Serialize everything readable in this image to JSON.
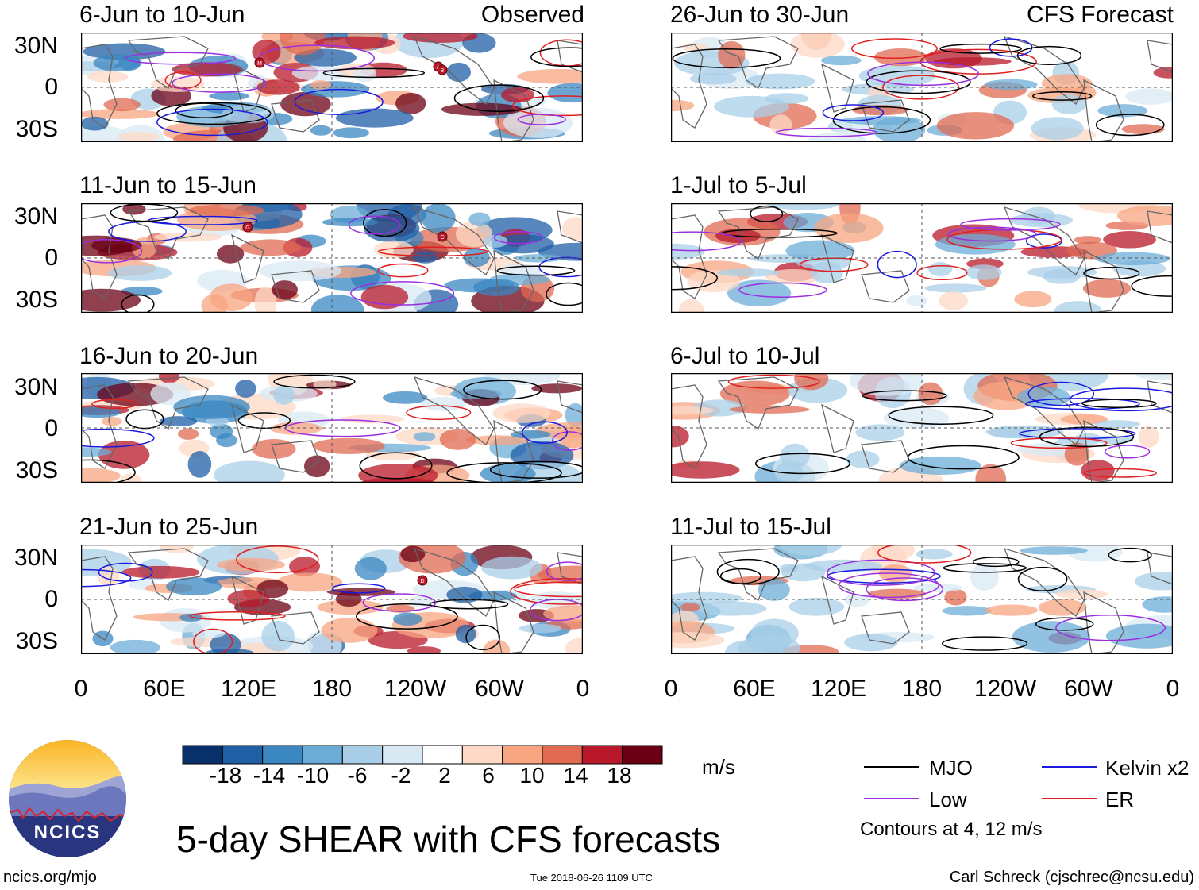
{
  "headers": {
    "observed": "Observed",
    "forecast": "CFS Forecast"
  },
  "panels_observed": [
    {
      "title": "6-Jun to 10-Jun"
    },
    {
      "title": "11-Jun to 15-Jun"
    },
    {
      "title": "16-Jun to 20-Jun"
    },
    {
      "title": "21-Jun to 25-Jun"
    }
  ],
  "panels_forecast": [
    {
      "title": "26-Jun to 30-Jun"
    },
    {
      "title": "1-Jul to 5-Jul"
    },
    {
      "title": "6-Jul to 10-Jul"
    },
    {
      "title": "11-Jul to 15-Jul"
    }
  ],
  "lat_labels": [
    "30N",
    "0",
    "30S"
  ],
  "lon_labels": [
    "0",
    "60E",
    "120E",
    "180",
    "120W",
    "60W",
    "0"
  ],
  "storm_markers": {
    "p0": [
      "M",
      "A",
      "B"
    ],
    "p1": [
      "G",
      "C"
    ],
    "p3": [
      "D"
    ]
  },
  "colorbar": {
    "ticks": [
      "-18",
      "-14",
      "-10",
      "-6",
      "-2",
      "2",
      "6",
      "10",
      "14",
      "18"
    ],
    "colors": [
      "#08306b",
      "#1f5fa6",
      "#3a87c2",
      "#6cadd8",
      "#a9cfe8",
      "#d9e9f4",
      "#ffffff",
      "#fdd9c6",
      "#f8a582",
      "#e06a52",
      "#b8182a",
      "#6b0014"
    ],
    "units": "m/s"
  },
  "title": "5-day SHEAR with CFS forecasts",
  "legend": {
    "items": [
      {
        "label": "MJO",
        "color": "#000000"
      },
      {
        "label": "Kelvin x2",
        "color": "#1a1adf"
      },
      {
        "label": "Low",
        "color": "#9a30e0"
      },
      {
        "label": "ER",
        "color": "#e02020"
      }
    ],
    "note": "Contours at 4, 12 m/s"
  },
  "logo_text": "NCICS",
  "footer": {
    "url": "ncics.org/mjo",
    "timestamp": "Tue 2018-06-26 1109 UTC",
    "credit": "Carl Schreck (cjschrec@ncsu.edu)"
  }
}
